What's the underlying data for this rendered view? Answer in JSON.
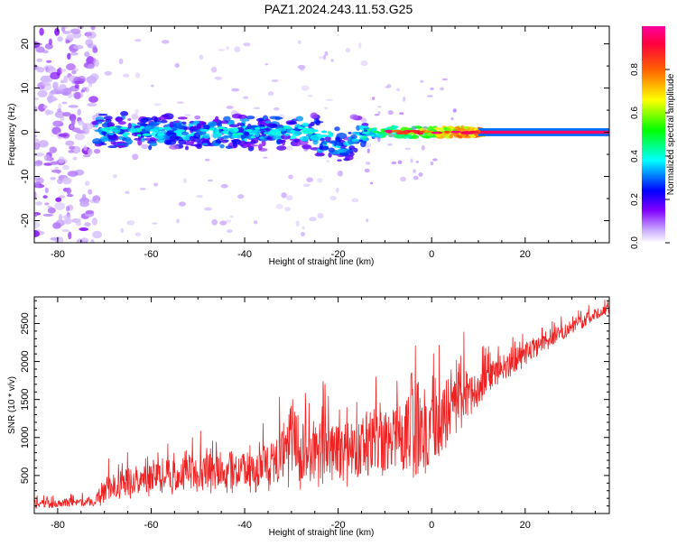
{
  "title": "PAZ1.2024.243.11.53.G25",
  "chart_data": [
    {
      "type": "heatmap",
      "xlabel": "Height of straight line (km)",
      "ylabel": "Frequency (Hz)",
      "xlim": [
        -85,
        38
      ],
      "ylim": [
        -25,
        24
      ],
      "x_ticks": [
        -80,
        -60,
        -40,
        -20,
        0,
        20
      ],
      "y_ticks": [
        -20,
        -10,
        0,
        10,
        20
      ],
      "colorbar": {
        "label": "Normalized spectral amplitude",
        "range": [
          0,
          1
        ],
        "ticks": [
          0.0,
          0.2,
          0.4,
          0.6,
          0.8
        ],
        "tick_labels": [
          "0.0",
          "0.2",
          "0.4",
          "0.6",
          "0.8"
        ],
        "colors": [
          "#ffffff",
          "#b090ff",
          "#6a00ff",
          "#0000ff",
          "#00ffff",
          "#00ff00",
          "#ffff00",
          "#ff8000",
          "#ff0000",
          "#ff00a0"
        ]
      },
      "features": [
        {
          "x_range": [
            -85,
            -72
          ],
          "f_range": [
            -25,
            24
          ],
          "level": 0.12
        },
        {
          "x_range": [
            -72,
            -15
          ],
          "f_range": [
            -6,
            4
          ],
          "level": 0.35
        },
        {
          "x_range": [
            -15,
            10
          ],
          "f_range": [
            -1.5,
            1.5
          ],
          "level": 0.6
        },
        {
          "x_range": [
            10,
            38
          ],
          "f_range": [
            -0.6,
            0.6
          ],
          "level": 0.95
        }
      ]
    },
    {
      "type": "line",
      "xlabel": "Height of straight line (km)",
      "ylabel": "SNR (10 * v/v)",
      "xlim": [
        -85,
        38
      ],
      "ylim": [
        0,
        2850
      ],
      "x_ticks": [
        -80,
        -60,
        -40,
        -20,
        0,
        20
      ],
      "y_ticks": [
        500,
        1000,
        1500,
        2000,
        2500
      ],
      "color": "#ee2222",
      "series": [
        {
          "x": [
            -85,
            -80,
            -75,
            -72,
            -70,
            -65,
            -60,
            -55,
            -50,
            -45,
            -40,
            -35,
            -32,
            -30,
            -28,
            -25,
            -22,
            -20,
            -18,
            -15,
            -12,
            -10,
            -8,
            -5,
            -4,
            -2,
            0,
            2,
            4,
            6,
            8,
            10,
            12,
            15,
            20,
            25,
            30,
            35,
            38
          ],
          "y": [
            130,
            140,
            150,
            155,
            320,
            420,
            480,
            520,
            560,
            600,
            560,
            640,
            760,
            1050,
            800,
            850,
            820,
            780,
            820,
            900,
            950,
            900,
            1000,
            1050,
            1300,
            1000,
            1100,
            1250,
            1350,
            1600,
            1550,
            1650,
            1800,
            1900,
            2100,
            2300,
            2450,
            2620,
            2700
          ],
          "amplitude": [
            90,
            90,
            90,
            90,
            280,
            300,
            320,
            360,
            380,
            420,
            380,
            450,
            600,
            900,
            650,
            700,
            650,
            600,
            650,
            700,
            750,
            700,
            750,
            800,
            1500,
            700,
            700,
            800,
            800,
            900,
            400,
            400,
            350,
            300,
            250,
            200,
            150,
            120,
            100
          ]
        }
      ]
    }
  ]
}
